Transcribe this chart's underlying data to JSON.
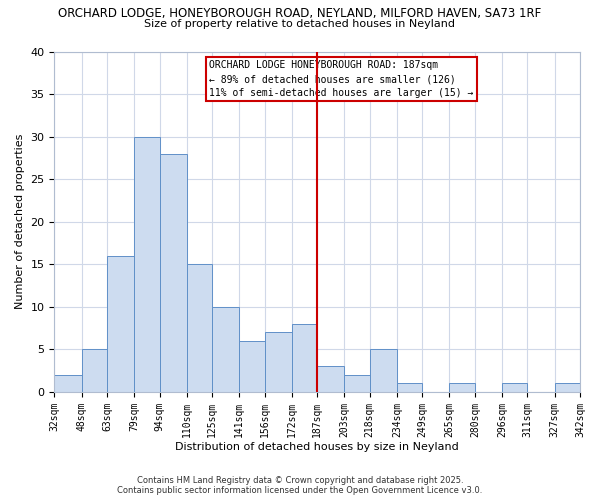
{
  "title_line1": "ORCHARD LODGE, HONEYBOROUGH ROAD, NEYLAND, MILFORD HAVEN, SA73 1RF",
  "title_line2": "Size of property relative to detached houses in Neyland",
  "xlabel": "Distribution of detached houses by size in Neyland",
  "ylabel": "Number of detached properties",
  "bin_edges": [
    32,
    48,
    63,
    79,
    94,
    110,
    125,
    141,
    156,
    172,
    187,
    203,
    218,
    234,
    249,
    265,
    280,
    296,
    311,
    327,
    342
  ],
  "counts": [
    2,
    5,
    16,
    30,
    28,
    15,
    10,
    6,
    7,
    8,
    3,
    2,
    5,
    1,
    0,
    1,
    0,
    1,
    0,
    1
  ],
  "bar_facecolor": "#cddcf0",
  "bar_edgecolor": "#6090c8",
  "vline_x": 187,
  "vline_color": "#cc0000",
  "annotation_line1": "ORCHARD LODGE HONEYBOROUGH ROAD: 187sqm",
  "annotation_line2": "← 89% of detached houses are smaller (126)",
  "annotation_line3": "11% of semi-detached houses are larger (15) →",
  "annotation_box_facecolor": "white",
  "annotation_box_edgecolor": "#cc0000",
  "ylim": [
    0,
    40
  ],
  "yticks": [
    0,
    5,
    10,
    15,
    20,
    25,
    30,
    35,
    40
  ],
  "grid_color": "#d0d8e8",
  "bg_color": "white",
  "footer_line1": "Contains HM Land Registry data © Crown copyright and database right 2025.",
  "footer_line2": "Contains public sector information licensed under the Open Government Licence v3.0."
}
